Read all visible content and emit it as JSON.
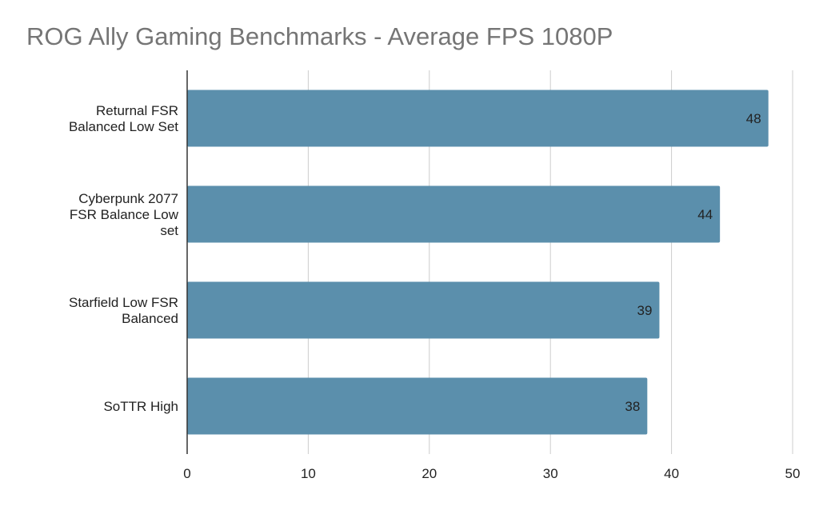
{
  "chart_data": {
    "type": "bar",
    "orientation": "horizontal",
    "title": "ROG Ally Gaming Benchmarks - Average FPS 1080P",
    "xlabel": "",
    "ylabel": "",
    "categories": [
      [
        "Returnal FSR",
        "Balanced Low Set"
      ],
      [
        "Cyberpunk 2077",
        "FSR Balance Low",
        "set"
      ],
      [
        "Starfield Low FSR",
        "Balanced"
      ],
      [
        "SoTTR High"
      ]
    ],
    "values": [
      48,
      44,
      39,
      38
    ],
    "data_labels": [
      "48",
      "44",
      "39",
      "38"
    ],
    "xlim": [
      0,
      50
    ],
    "x_ticks": [
      "0",
      "10",
      "20",
      "30",
      "40",
      "50"
    ],
    "grid": true,
    "legend": "none",
    "bar_color": "#5b8fac"
  }
}
